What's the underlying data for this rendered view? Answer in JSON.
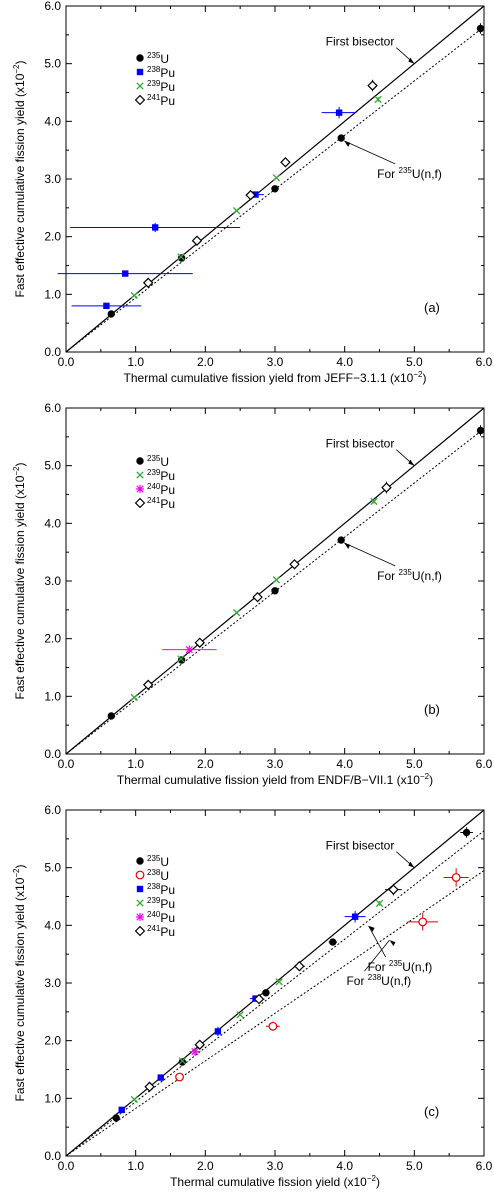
{
  "chart_data": [
    {
      "type": "scatter",
      "panel_label": "(a)",
      "xlabel": "Thermal cumulative fission yield from JEFF−3.1.1",
      "xunit": "(x10",
      "ylabel": "Fast effective cumulative fission yield",
      "yunit": "(x10",
      "exponent": "−2",
      "xlim": [
        0,
        6
      ],
      "ylim": [
        0,
        6
      ],
      "tick_labels": [
        "0.0",
        "1.0",
        "2.0",
        "3.0",
        "4.0",
        "5.0",
        "6.0"
      ],
      "annotations": [
        {
          "label": "First bisector",
          "kind": "bisector"
        },
        {
          "prefix": "For ",
          "sup": "235",
          "suffix": "U(n,f)",
          "kind": "fit",
          "slope": 0.94
        }
      ],
      "series": [
        {
          "name": "U",
          "mass": "235",
          "marker": "circle",
          "color": "#000000",
          "points": [
            [
              0.65,
              0.66,
              0,
              0.02
            ],
            [
              1.66,
              1.63,
              0,
              0.03
            ],
            [
              3.0,
              2.83,
              0,
              0.05
            ],
            [
              3.95,
              3.71,
              0,
              0.06
            ],
            [
              5.95,
              5.61,
              0,
              0.09
            ]
          ]
        },
        {
          "name": "Pu",
          "mass": "238",
          "marker": "square",
          "color": "#0000ff",
          "points": [
            [
              0.58,
              0.8,
              0.5,
              0.02
            ],
            [
              0.85,
              1.36,
              0.97,
              0.03
            ],
            [
              1.28,
              2.16,
              1.22,
              0.08
            ],
            [
              2.72,
              2.73,
              0.12,
              0.05
            ],
            [
              3.92,
              4.15,
              0.25,
              0.1
            ]
          ]
        },
        {
          "name": "Pu",
          "mass": "239",
          "marker": "x",
          "color": "#33aa33",
          "points": [
            [
              0.98,
              0.98,
              0,
              0
            ],
            [
              1.65,
              1.65,
              0,
              0
            ],
            [
              2.45,
              2.45,
              0,
              0
            ],
            [
              3.02,
              3.02,
              0,
              0
            ],
            [
              4.48,
              4.38,
              0,
              0.04
            ]
          ]
        },
        {
          "name": "Pu",
          "mass": "241",
          "marker": "diamond",
          "color": "#000000",
          "points": [
            [
              1.18,
              1.2,
              0,
              0.03
            ],
            [
              1.88,
              1.93,
              0,
              0.04
            ],
            [
              2.65,
              2.72,
              0.06,
              0.05
            ],
            [
              3.15,
              3.29,
              0.05,
              0.08
            ],
            [
              4.4,
              4.62,
              0.06,
              0.1
            ]
          ]
        }
      ]
    },
    {
      "type": "scatter",
      "panel_label": "(b)",
      "xlabel": "Thermal cumulative fission yield from ENDF/B−VII.1",
      "xunit": "(x10",
      "ylabel": "Fast effective cumulative fission yield",
      "yunit": "(x10",
      "exponent": "−2",
      "xlim": [
        0,
        6
      ],
      "ylim": [
        0,
        6
      ],
      "tick_labels": [
        "0.0",
        "1.0",
        "2.0",
        "3.0",
        "4.0",
        "5.0",
        "6.0"
      ],
      "annotations": [
        {
          "label": "First bisector",
          "kind": "bisector"
        },
        {
          "prefix": "For ",
          "sup": "235",
          "suffix": "U(n,f)",
          "kind": "fit",
          "slope": 0.94
        }
      ],
      "series": [
        {
          "name": "U",
          "mass": "235",
          "marker": "circle",
          "color": "#000000",
          "points": [
            [
              0.65,
              0.66,
              0,
              0.02
            ],
            [
              1.66,
              1.63,
              0,
              0.03
            ],
            [
              3.0,
              2.83,
              0,
              0.05
            ],
            [
              3.95,
              3.71,
              0,
              0.06
            ],
            [
              5.95,
              5.61,
              0,
              0.09
            ]
          ]
        },
        {
          "name": "Pu",
          "mass": "239",
          "marker": "x",
          "color": "#33aa33",
          "points": [
            [
              0.98,
              0.98,
              0,
              0
            ],
            [
              1.65,
              1.65,
              0,
              0
            ],
            [
              2.45,
              2.45,
              0,
              0
            ],
            [
              3.02,
              3.02,
              0,
              0
            ],
            [
              4.42,
              4.38,
              0,
              0.04
            ]
          ]
        },
        {
          "name": "Pu",
          "mass": "240",
          "marker": "asterisk",
          "color": "#ff00ff",
          "points": [
            [
              1.77,
              1.81,
              0.39,
              0.03
            ]
          ]
        },
        {
          "name": "Pu",
          "mass": "241",
          "marker": "diamond",
          "color": "#000000",
          "points": [
            [
              1.18,
              1.2,
              0,
              0.03
            ],
            [
              1.92,
              1.93,
              0,
              0.04
            ],
            [
              2.75,
              2.72,
              0,
              0.05
            ],
            [
              3.28,
              3.29,
              0,
              0.08
            ],
            [
              4.6,
              4.62,
              0,
              0.1
            ]
          ]
        }
      ]
    },
    {
      "type": "scatter",
      "panel_label": "(c)",
      "xlabel": "Thermal cumulative fission yield",
      "xunit": "(x10",
      "ylabel": "Fast effective cumulative fission yield",
      "yunit": "(x10",
      "exponent": "−2",
      "xlim": [
        0,
        6
      ],
      "ylim": [
        0,
        6
      ],
      "tick_labels": [
        "0.0",
        "1.0",
        "2.0",
        "3.0",
        "4.0",
        "5.0",
        "6.0"
      ],
      "annotations": [
        {
          "label": "First bisector",
          "kind": "bisector"
        },
        {
          "prefix": "For ",
          "sup": "235",
          "suffix": "U(n,f)",
          "kind": "fit",
          "slope": 0.94
        },
        {
          "prefix": "For ",
          "sup": "238",
          "suffix": "U(n,f)",
          "kind": "fit",
          "slope": 0.825
        }
      ],
      "series": [
        {
          "name": "U",
          "mass": "235",
          "marker": "circle",
          "color": "#000000",
          "points": [
            [
              0.72,
              0.66,
              0.05,
              0.02
            ],
            [
              1.67,
              1.63,
              0,
              0.03
            ],
            [
              2.87,
              2.83,
              0.05,
              0.05
            ],
            [
              3.83,
              3.71,
              0.06,
              0.06
            ],
            [
              5.75,
              5.61,
              0.09,
              0.09
            ]
          ]
        },
        {
          "name": "U",
          "mass": "238",
          "marker": "open-circle",
          "color": "#dd0000",
          "points": [
            [
              1.63,
              1.37,
              0,
              0.03
            ],
            [
              2.97,
              2.25,
              0.1,
              0.08
            ],
            [
              5.12,
              4.06,
              0.22,
              0.15
            ],
            [
              5.6,
              4.83,
              0.18,
              0.16
            ]
          ]
        },
        {
          "name": "Pu",
          "mass": "238",
          "marker": "square",
          "color": "#0000ff",
          "points": [
            [
              0.8,
              0.8,
              0,
              0.02
            ],
            [
              1.36,
              1.36,
              0,
              0.03
            ],
            [
              2.18,
              2.16,
              0,
              0.08
            ],
            [
              2.72,
              2.73,
              0.08,
              0.05
            ],
            [
              4.15,
              4.15,
              0.15,
              0.1
            ]
          ]
        },
        {
          "name": "Pu",
          "mass": "239",
          "marker": "x",
          "color": "#33aa33",
          "points": [
            [
              0.98,
              0.98,
              0,
              0
            ],
            [
              1.67,
              1.65,
              0,
              0
            ],
            [
              2.5,
              2.45,
              0,
              0
            ],
            [
              3.06,
              3.02,
              0,
              0
            ],
            [
              4.5,
              4.38,
              0,
              0.04
            ]
          ]
        },
        {
          "name": "Pu",
          "mass": "240",
          "marker": "asterisk",
          "color": "#ff00ff",
          "points": [
            [
              1.85,
              1.81,
              0.08,
              0.03
            ]
          ]
        },
        {
          "name": "Pu",
          "mass": "241",
          "marker": "diamond",
          "color": "#000000",
          "points": [
            [
              1.2,
              1.2,
              0,
              0.03
            ],
            [
              1.92,
              1.93,
              0,
              0.04
            ],
            [
              2.77,
              2.72,
              0.08,
              0.05
            ],
            [
              3.35,
              3.29,
              0.08,
              0.08
            ],
            [
              4.7,
              4.62,
              0.12,
              0.1
            ]
          ]
        }
      ]
    }
  ]
}
